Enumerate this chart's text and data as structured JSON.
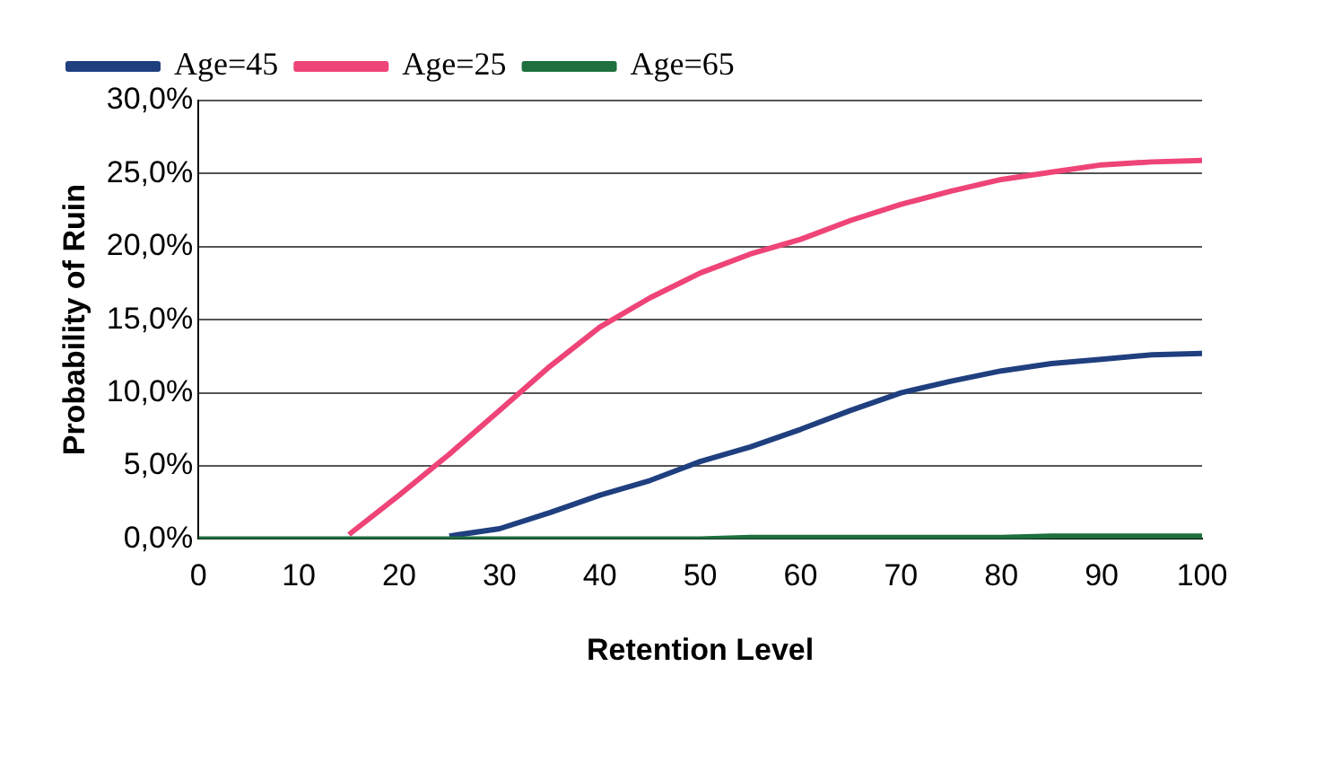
{
  "chart_data": {
    "type": "line",
    "xlabel": "Retention Level",
    "ylabel": "Probability of Ruin",
    "xlim": [
      0,
      100
    ],
    "xticks": [
      0,
      10,
      20,
      30,
      40,
      50,
      60,
      70,
      80,
      90,
      100
    ],
    "ylim": [
      0,
      30
    ],
    "yticks": [
      {
        "value": 0,
        "label": "0,0%"
      },
      {
        "value": 5,
        "label": "5,0%"
      },
      {
        "value": 10,
        "label": "10,0%"
      },
      {
        "value": 15,
        "label": "15,0%"
      },
      {
        "value": 20,
        "label": "20,0%"
      },
      {
        "value": 25,
        "label": "25,0%"
      },
      {
        "value": 30,
        "label": "30,0%"
      }
    ],
    "grid": "y",
    "legend": "top left",
    "marker": "none",
    "line_style": "solid",
    "x": [
      0,
      10,
      13,
      15,
      20,
      25,
      30,
      35,
      40,
      45,
      50,
      55,
      60,
      65,
      70,
      75,
      80,
      85,
      90,
      95,
      100
    ],
    "series": [
      {
        "name": "Age=45",
        "color": "#1f3f7f",
        "values": [
          null,
          null,
          null,
          null,
          null,
          0.2,
          0.7,
          1.8,
          3.0,
          4.0,
          5.3,
          6.3,
          7.5,
          8.8,
          10.0,
          10.8,
          11.5,
          12.0,
          12.3,
          12.6,
          12.7
        ]
      },
      {
        "name": "Age=25",
        "color": "#ee4477",
        "values": [
          null,
          null,
          null,
          0.3,
          3.0,
          5.8,
          8.8,
          11.8,
          14.5,
          16.5,
          18.2,
          19.5,
          20.5,
          21.8,
          22.9,
          23.8,
          24.6,
          25.1,
          25.6,
          25.8,
          25.9
        ]
      },
      {
        "name": "Age=65",
        "color": "#1f6f3f",
        "values": [
          0,
          0,
          0,
          0,
          0,
          0,
          0,
          0,
          0,
          0,
          0,
          0.1,
          0.1,
          0.1,
          0.1,
          0.1,
          0.1,
          0.2,
          0.2,
          0.2,
          0.2
        ]
      }
    ]
  }
}
